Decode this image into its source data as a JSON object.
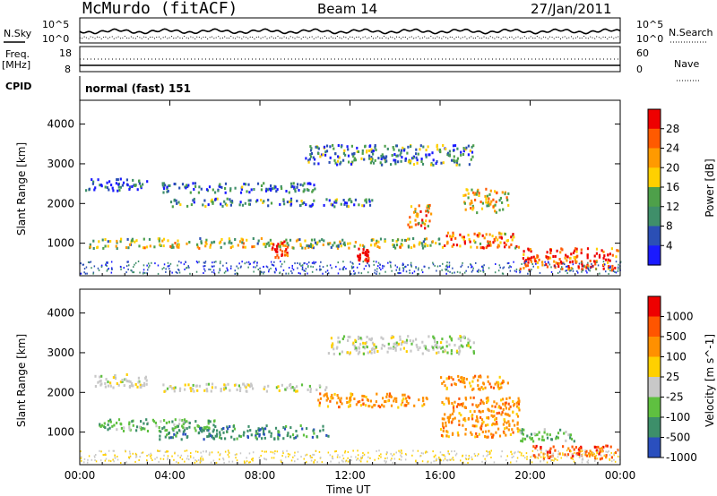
{
  "header": {
    "station": "McMurdo (fitACF)",
    "beam": "Beam 14",
    "date": "27/Jan/2011"
  },
  "sky_panel": {
    "left_label": "N.Sky",
    "right_label": "N.Search",
    "ytick_top": "10^5",
    "ytick_bottom": "10^0",
    "right_tick_top": "10^5",
    "right_tick_bottom": "10^0"
  },
  "freq_panel": {
    "left_label_1": "Freq.",
    "left_label_2": "[MHz]",
    "ytick_top": "18",
    "ytick_bottom": "8",
    "right_label": "Nave",
    "right_tick_top": "60",
    "right_tick_bottom": "0"
  },
  "cpid": {
    "label": "CPID",
    "value": "normal (fast) 151"
  },
  "colors": {
    "power": [
      "#1a1aff",
      "#2b4fb5",
      "#3f8f6a",
      "#4ea04a",
      "#ffd000",
      "#ff9a00",
      "#ff5a00",
      "#ee0000"
    ],
    "velocity": [
      "#2a4fbe",
      "#3d8f6a",
      "#5fc040",
      "#c8c8c8",
      "#ffd000",
      "#ff9000",
      "#ff5500",
      "#ee0000"
    ]
  },
  "chart_data": [
    {
      "type": "heatmap",
      "title": "",
      "xlabel": "",
      "ylabel": "Slant Range [km]",
      "x_ticks": [
        "00:00",
        "04:00",
        "08:00",
        "12:00",
        "16:00",
        "20:00",
        "00:00"
      ],
      "xlim": [
        0,
        24
      ],
      "y_ticks": [
        "1000",
        "2000",
        "3000",
        "4000"
      ],
      "ylim": [
        180,
        4600
      ],
      "colorbar": {
        "label": "Power [dB]",
        "ticks": [
          "4",
          "8",
          "12",
          "16",
          "20",
          "24",
          "28"
        ]
      },
      "echo_regions": [
        {
          "x": [
            0.4,
            16
          ],
          "y": [
            900,
            1150
          ],
          "level": 0.5
        },
        {
          "x": [
            3.6,
            10.5
          ],
          "y": [
            2300,
            2550
          ],
          "level": 0.25
        },
        {
          "x": [
            0.2,
            3
          ],
          "y": [
            2350,
            2650
          ],
          "level": 0.15
        },
        {
          "x": [
            4,
            13
          ],
          "y": [
            1950,
            2150
          ],
          "level": 0.3
        },
        {
          "x": [
            8.5,
            9.2
          ],
          "y": [
            650,
            1100
          ],
          "level": 0.9
        },
        {
          "x": [
            12.3,
            12.8
          ],
          "y": [
            550,
            900
          ],
          "level": 0.95
        },
        {
          "x": [
            14.5,
            15.6
          ],
          "y": [
            1400,
            2000
          ],
          "level": 0.7
        },
        {
          "x": [
            16,
            19.5
          ],
          "y": [
            900,
            1300
          ],
          "level": 0.75
        },
        {
          "x": [
            17,
            19
          ],
          "y": [
            1800,
            2400
          ],
          "level": 0.6
        },
        {
          "x": [
            19.5,
            23.9
          ],
          "y": [
            350,
            900
          ],
          "level": 0.85
        },
        {
          "x": [
            10,
            17.5
          ],
          "y": [
            3000,
            3500
          ],
          "level": 0.3
        }
      ]
    },
    {
      "type": "heatmap",
      "title": "",
      "xlabel": "Time UT",
      "ylabel": "Slant Range [km]",
      "x_ticks": [
        "00:00",
        "04:00",
        "08:00",
        "12:00",
        "16:00",
        "20:00",
        "00:00"
      ],
      "xlim": [
        0,
        24
      ],
      "y_ticks": [
        "1000",
        "2000",
        "3000",
        "4000"
      ],
      "ylim": [
        180,
        4600
      ],
      "colorbar": {
        "label": "Velocity [m s^-1]",
        "ticks": [
          "1000",
          "500",
          "100",
          "25",
          "-25",
          "-100",
          "-500",
          "-1000"
        ]
      },
      "echo_regions": [
        {
          "x": [
            3.5,
            11
          ],
          "y": [
            2050,
            2250
          ],
          "level": 3
        },
        {
          "x": [
            0.5,
            3
          ],
          "y": [
            2150,
            2500
          ],
          "level": 3
        },
        {
          "x": [
            0.8,
            6
          ],
          "y": [
            1050,
            1350
          ],
          "level": 2
        },
        {
          "x": [
            3.5,
            11
          ],
          "y": [
            850,
            1200
          ],
          "level": 1
        },
        {
          "x": [
            10.5,
            15.5
          ],
          "y": [
            1650,
            2000
          ],
          "level": 5
        },
        {
          "x": [
            11,
            17.5
          ],
          "y": [
            3000,
            3450
          ],
          "level": 3
        },
        {
          "x": [
            16,
            19.5
          ],
          "y": [
            900,
            1900
          ],
          "level": 5
        },
        {
          "x": [
            16,
            19
          ],
          "y": [
            2100,
            2450
          ],
          "level": 5
        },
        {
          "x": [
            20,
            23.9
          ],
          "y": [
            350,
            700
          ],
          "level": 6
        },
        {
          "x": [
            19.5,
            22
          ],
          "y": [
            800,
            1100
          ],
          "level": 2
        }
      ]
    }
  ]
}
